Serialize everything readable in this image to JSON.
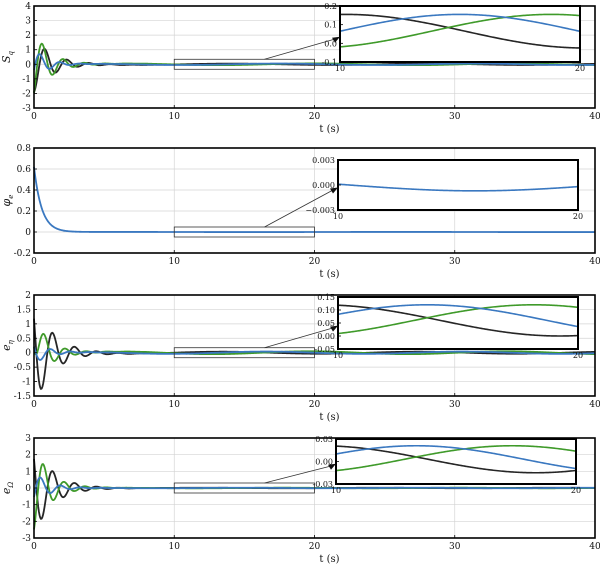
{
  "colors": {
    "blue": "#3a78c0",
    "green": "#3f9a2a",
    "black": "#262626",
    "grid": "#d4d4d4"
  },
  "chart_data": [
    {
      "type": "line",
      "ylabel_main": "S",
      "ylabel_sub": "q",
      "xlabel": "t (s)",
      "xlim": [
        0,
        40
      ],
      "ylim": [
        -3,
        4
      ],
      "xticks": [
        0,
        10,
        20,
        30,
        40
      ],
      "yticks": [
        -3,
        -2,
        -1,
        0,
        1,
        2,
        3,
        4
      ],
      "grid": true,
      "series": [
        {
          "color": "black",
          "A": -1.9,
          "tau": 1.3,
          "omega": 4.0,
          "phase": 0.0,
          "lead": 0.0,
          "tail": {
            "amp": 0.045,
            "freq": 0.45,
            "phase": 1.5
          }
        },
        {
          "color": "green",
          "A": -2.4,
          "tau": 1.1,
          "omega": 4.2,
          "phase": 0.6,
          "lead": 0.0,
          "tail": {
            "amp": 0.06,
            "freq": 0.45,
            "phase": -1.2
          }
        },
        {
          "color": "blue",
          "A": -1.1,
          "tau": 0.9,
          "omega": 4.4,
          "phase": 1.2,
          "lead": 0.0,
          "tail": {
            "amp": 0.05,
            "freq": 0.45,
            "phase": 0.0
          }
        }
      ],
      "zoom": {
        "x": [
          10,
          20
        ],
        "y": [
          -0.1,
          0.1
        ]
      },
      "inset": {
        "xlim": [
          10,
          20
        ],
        "ylim": [
          -0.1,
          0.2
        ],
        "yticks": [
          -0.1,
          0.0,
          0.1,
          0.2
        ],
        "ytick_labels": [
          "-0.1",
          "0.0",
          "0.1",
          "0.2"
        ],
        "xtick_labels": [
          "10",
          "20"
        ]
      }
    },
    {
      "type": "line",
      "ylabel_main": "φ",
      "ylabel_sub": "e",
      "xlabel": "t (s)",
      "xlim": [
        0,
        40
      ],
      "ylim": [
        -0.2,
        0.8
      ],
      "xticks": [
        0,
        10,
        20,
        30,
        40
      ],
      "yticks": [
        -0.2,
        0.0,
        0.2,
        0.4,
        0.6,
        0.8
      ],
      "grid": true,
      "series": [
        {
          "color": "blue",
          "decay0": 0.62,
          "decayTau": 0.55,
          "tail": {
            "amp": 0.0007,
            "freq": 0.3,
            "phase": 0
          }
        }
      ],
      "zoom": {
        "x": [
          10,
          20
        ],
        "y": [
          -0.02,
          0.02
        ]
      },
      "inset": {
        "xlim": [
          10,
          20
        ],
        "ylim": [
          -0.003,
          0.003
        ],
        "yticks": [
          -0.003,
          0.0,
          0.003
        ],
        "ytick_labels": [
          "−0.003",
          "0.000",
          "0.003"
        ],
        "xtick_labels": [
          "10",
          "20"
        ]
      }
    },
    {
      "type": "line",
      "ylabel_main": "e",
      "ylabel_sub": "η",
      "xlabel": "t (s)",
      "xlim": [
        0,
        40
      ],
      "ylim": [
        -1.5,
        2.0
      ],
      "xticks": [
        0,
        10,
        20,
        30,
        40
      ],
      "yticks": [
        -1.5,
        -1.0,
        -0.5,
        0.0,
        0.5,
        1.0,
        1.5,
        2.0
      ],
      "grid": true,
      "series": [
        {
          "color": "black",
          "A": 1.9,
          "tau": 1.3,
          "omega": 4.0,
          "phase": 0.9,
          "lead": 0.0,
          "tail": {
            "amp": 0.035,
            "freq": 0.45,
            "phase": 1.8
          }
        },
        {
          "color": "green",
          "A": -1.1,
          "tau": 1.1,
          "omega": 4.2,
          "phase": 0.0,
          "lead": 1.3,
          "tail": {
            "amp": 0.05,
            "freq": 0.45,
            "phase": -1.0
          }
        },
        {
          "color": "blue",
          "A": 0.4,
          "tau": 1.0,
          "omega": 4.4,
          "phase": 1.0,
          "lead": 0.0,
          "tail": {
            "amp": 0.04,
            "freq": 0.45,
            "phase": 0.4
          }
        }
      ],
      "zoom": {
        "x": [
          10,
          20
        ],
        "y": [
          -0.1,
          0.1
        ]
      },
      "inset": {
        "xlim": [
          10,
          20
        ],
        "ylim": [
          -0.05,
          0.15
        ],
        "yticks": [
          -0.05,
          0.0,
          0.05,
          0.1,
          0.15
        ],
        "ytick_labels": [
          "-0.05",
          "0.00",
          "0.05",
          "0.10",
          "0.15"
        ],
        "xtick_labels": [
          "10",
          "20"
        ]
      }
    },
    {
      "type": "line",
      "ylabel_main": "e",
      "ylabel_sub": "Ω",
      "xlabel": "t (s)",
      "xlim": [
        0,
        40
      ],
      "ylim": [
        -3,
        3
      ],
      "xticks": [
        0,
        10,
        20,
        30,
        40
      ],
      "yticks": [
        -3,
        -2,
        -1,
        0,
        1,
        2,
        3
      ],
      "grid": true,
      "series": [
        {
          "color": "black",
          "A": 2.8,
          "tau": 1.3,
          "omega": 4.0,
          "phase": 0.9,
          "lead": 0.0,
          "tail": {
            "amp": 0.015,
            "freq": 0.5,
            "phase": 1.8
          }
        },
        {
          "color": "green",
          "A": -2.6,
          "tau": 1.1,
          "omega": 4.2,
          "phase": 0.3,
          "lead": 0.0,
          "tail": {
            "amp": 0.018,
            "freq": 0.5,
            "phase": -1.0
          }
        },
        {
          "color": "blue",
          "A": -1.0,
          "tau": 1.0,
          "omega": 4.4,
          "phase": 1.0,
          "lead": 0.0,
          "tail": {
            "amp": 0.016,
            "freq": 0.5,
            "phase": 0.4
          }
        }
      ],
      "zoom": {
        "x": [
          10,
          20
        ],
        "y": [
          -0.1,
          0.1
        ]
      },
      "inset": {
        "xlim": [
          10,
          20
        ],
        "ylim": [
          -0.03,
          0.03
        ],
        "yticks": [
          -0.03,
          0.0,
          0.03
        ],
        "ytick_labels": [
          "-0.03",
          "0.00",
          "0.03"
        ],
        "xtick_labels": [
          "10",
          "20"
        ]
      }
    }
  ]
}
